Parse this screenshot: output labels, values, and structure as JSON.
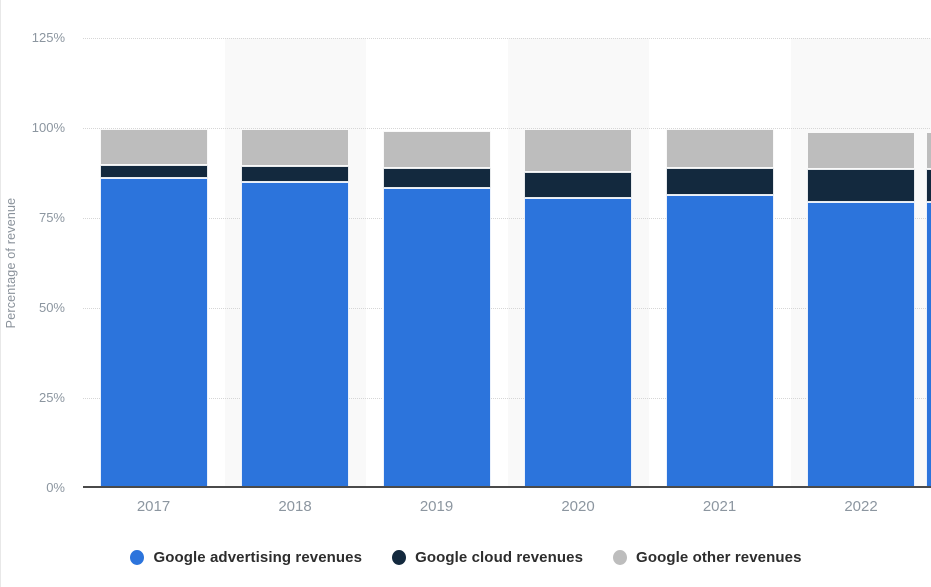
{
  "chart_data": {
    "type": "bar",
    "stacked": true,
    "normalized_to_percent": true,
    "categories": [
      "2017",
      "2018",
      "2019",
      "2020",
      "2021",
      "2022"
    ],
    "series": [
      {
        "name": "Google advertising revenues",
        "color": "#2C74DC",
        "values": [
          86.0,
          85.1,
          83.3,
          80.5,
          81.3,
          79.4
        ]
      },
      {
        "name": "Google cloud revenues",
        "color": "#13293E",
        "values": [
          3.7,
          4.3,
          5.5,
          7.2,
          7.5,
          9.3
        ]
      },
      {
        "name": "Google other revenues",
        "color": "#BDBDBD",
        "values": [
          9.9,
          10.3,
          10.5,
          11.9,
          10.9,
          10.3
        ]
      }
    ],
    "title": "",
    "xlabel": "",
    "ylabel": "Percentage of revenue",
    "ylim": [
      0,
      125
    ],
    "y_tick_labels": [
      "0%",
      "25%",
      "50%",
      "75%",
      "100%",
      "125%"
    ],
    "y_tick_values": [
      0,
      25,
      50,
      75,
      100,
      125
    ],
    "grid": "horizontal-dotted",
    "legend_position": "bottom",
    "clipped_partial_bar_at_right_edge": {
      "values": [
        79.4,
        9.3,
        10.3
      ]
    },
    "layout_hints": {
      "plot_band_alt_color": "#f9f9f9",
      "gridline_color": "#d6d6d6",
      "axis_line_color": "#4a4a4a",
      "axis_label_color": "#8c96a0",
      "legend_text_color": "#2d2d2d",
      "background_color": "#ffffff"
    }
  }
}
